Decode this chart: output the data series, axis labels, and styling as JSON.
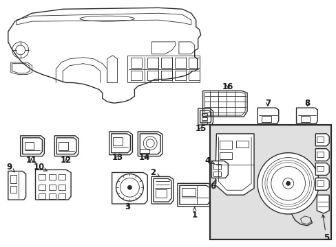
{
  "background_color": "#ffffff",
  "line_color": "#2a2a2a",
  "label_color": "#1a1a1a",
  "inset_bg": "#e0e0e0",
  "label_fontsize": 8.5,
  "lw_main": 1.0,
  "lw_thin": 0.6,
  "figsize": [
    4.89,
    3.6
  ],
  "dpi": 100
}
